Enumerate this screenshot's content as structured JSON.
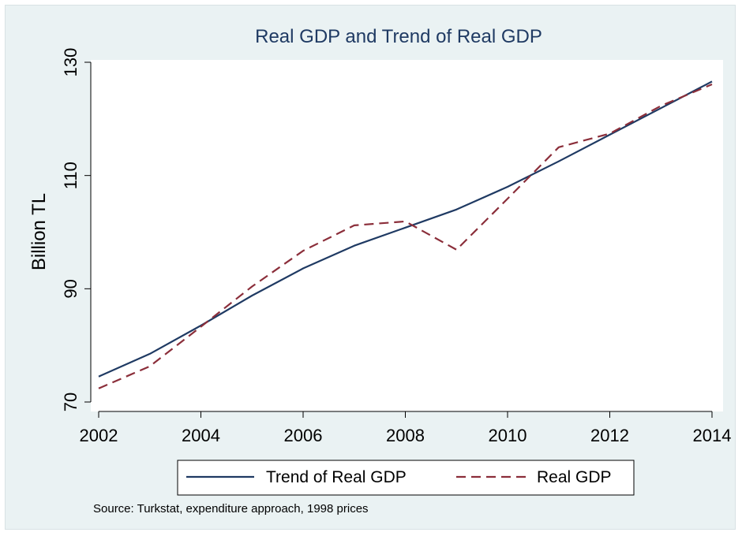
{
  "chart_data": {
    "type": "line",
    "title": "Real GDP and Trend of Real GDP",
    "xlabel": "",
    "ylabel": "Billion TL",
    "x": [
      2002,
      2003,
      2004,
      2005,
      2006,
      2007,
      2008,
      2009,
      2010,
      2011,
      2012,
      2013,
      2014
    ],
    "xlim": [
      2002,
      2014
    ],
    "ylim": [
      70,
      130
    ],
    "x_ticks": [
      2002,
      2004,
      2006,
      2008,
      2010,
      2012,
      2014
    ],
    "y_ticks": [
      70,
      90,
      110,
      130
    ],
    "grid": false,
    "legend_position": "bottom",
    "series": [
      {
        "name": "Trend of Real GDP",
        "style": "solid",
        "color": "#1f3a63",
        "values": [
          74.5,
          78.5,
          83.5,
          88.8,
          93.6,
          97.6,
          100.8,
          104.0,
          108.0,
          112.5,
          117.2,
          121.9,
          126.6
        ]
      },
      {
        "name": "Real GDP",
        "style": "dashed",
        "color": "#8b2e3a",
        "values": [
          72.4,
          76.3,
          83.3,
          90.4,
          96.7,
          101.2,
          101.9,
          96.9,
          105.9,
          115.0,
          117.4,
          122.3,
          126.1
        ]
      }
    ],
    "note": "Source: Turkstat, expenditure approach, 1998 prices"
  }
}
